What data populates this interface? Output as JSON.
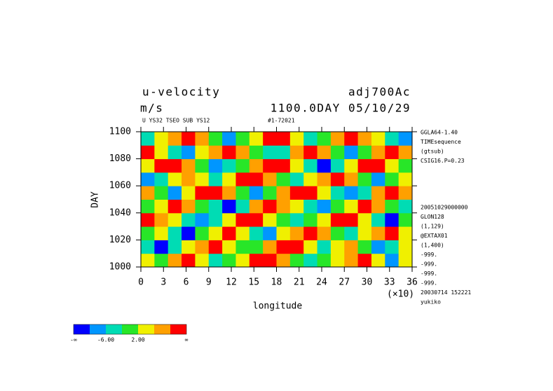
{
  "chart_data": {
    "type": "heatmap",
    "title": "u-velocity",
    "run_label": "adj700Ac",
    "units": "m/s",
    "time_label": "1100.0DAY 05/10/29",
    "subtitle_left": "U YS32 TSEO SUB YS12",
    "subtitle_right": "#1-72021",
    "xlabel": "longitude",
    "x_scale_note": "(×10)",
    "ylabel": "DAY",
    "xlim": [
      0,
      36
    ],
    "xticks": [
      0,
      3,
      6,
      9,
      12,
      15,
      18,
      21,
      24,
      27,
      30,
      33,
      36
    ],
    "ylim": [
      1000,
      1100
    ],
    "yticks": [
      1000,
      1020,
      1040,
      1060,
      1080,
      1100
    ],
    "z": [
      [
        3,
        -2,
        8,
        12,
        4,
        -3,
        0,
        5,
        11,
        13,
        6,
        1,
        -4,
        -1,
        3,
        9,
        12,
        5,
        -7,
        2
      ],
      [
        -5,
        -11,
        -3,
        4,
        9,
        12,
        3,
        -2,
        1,
        6,
        12,
        14,
        4,
        -3,
        2,
        7,
        -1,
        -9,
        -3,
        5
      ],
      [
        1,
        4,
        -6,
        -12,
        -2,
        5,
        10,
        2,
        -4,
        -8,
        3,
        9,
        11,
        6,
        -1,
        -5,
        2,
        8,
        12,
        4
      ],
      [
        10,
        6,
        2,
        -3,
        -9,
        -4,
        3,
        11,
        13,
        5,
        -2,
        -6,
        0,
        4,
        10,
        13,
        4,
        -3,
        -11,
        -2
      ],
      [
        -2,
        5,
        12,
        7,
        1,
        -5,
        -12,
        -4,
        6,
        12,
        9,
        2,
        -3,
        -9,
        -2,
        5,
        11,
        7,
        1,
        -6
      ],
      [
        7,
        -1,
        -8,
        3,
        11,
        14,
        6,
        -2,
        -7,
        -1,
        7,
        13,
        12,
        4,
        -4,
        -10,
        -3,
        6,
        12,
        9
      ],
      [
        -9,
        -4,
        3,
        9,
        4,
        -3,
        2,
        10,
        13,
        7,
        -1,
        -6,
        3,
        9,
        13,
        6,
        -2,
        -7,
        1,
        5
      ],
      [
        4,
        11,
        13,
        6,
        -2,
        -10,
        -5,
        1,
        8,
        12,
        11,
        3,
        -4,
        -11,
        -3,
        4,
        10,
        13,
        5,
        -1
      ],
      [
        12,
        5,
        -3,
        -8,
        2,
        8,
        13,
        9,
        1,
        -6,
        -3,
        7,
        12,
        6,
        -1,
        -8,
        -2,
        6,
        11,
        8
      ],
      [
        -3,
        2,
        9,
        12,
        6,
        -1,
        -7,
        -2,
        5,
        11,
        13,
        4,
        -5,
        -1,
        8,
        13,
        9,
        2,
        -6,
        -10
      ]
    ],
    "levels": [
      -10,
      -6,
      -2,
      2,
      6,
      10
    ],
    "colors": [
      "#0000ff",
      "#0096ff",
      "#00dcb4",
      "#28e628",
      "#f0f000",
      "#ffa000",
      "#ff0000"
    ],
    "colorbar_ticks": [
      {
        "value": -6,
        "label": "-6.00"
      },
      {
        "value": 2,
        "label": "2.00"
      }
    ],
    "colorbar_end_labels": [
      "-∞",
      "∞"
    ],
    "info": [
      [
        "GGLA64-1.40",
        "TIMEsequence",
        "(gtsub)",
        "CSIG16.P=0.23"
      ],
      [
        "20051029000000",
        "GLON128",
        "(1,129)",
        "@EXTAX01",
        "(1,400)",
        "-999.",
        "-999.",
        "-999.",
        "-999.",
        "20030714 152221",
        "yukiko"
      ]
    ]
  }
}
